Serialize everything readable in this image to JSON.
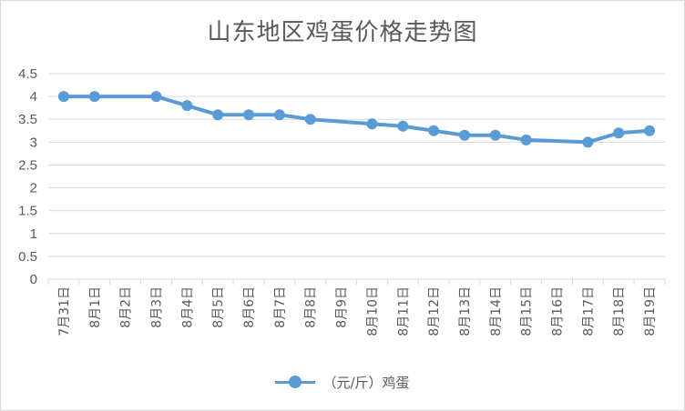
{
  "chart_data": {
    "type": "line",
    "title": "山东地区鸡蛋价格走势图",
    "xlabel": "",
    "ylabel": "",
    "ylim": [
      0,
      4.5
    ],
    "yticks": [
      "0",
      "0.5",
      "1",
      "1.5",
      "2",
      "2.5",
      "3",
      "3.5",
      "4",
      "4.5"
    ],
    "categories": [
      "7月31日",
      "8月1日",
      "8月2日",
      "8月3日",
      "8月4日",
      "8月5日",
      "8月6日",
      "8月7日",
      "8月8日",
      "8月9日",
      "8月10日",
      "8月11日",
      "8月12日",
      "8月13日",
      "8月14日",
      "8月15日",
      "8月16日",
      "8月17日",
      "8月18日",
      "8月19日"
    ],
    "series": [
      {
        "name": "（元/斤）鸡蛋",
        "color": "#5b9bd5",
        "values": [
          4.0,
          4.0,
          null,
          4.0,
          3.8,
          3.6,
          3.6,
          3.6,
          3.5,
          null,
          3.4,
          3.35,
          3.25,
          3.15,
          3.15,
          3.05,
          null,
          3.0,
          3.2,
          3.25
        ]
      }
    ],
    "grid": true,
    "legend": "bottom"
  }
}
